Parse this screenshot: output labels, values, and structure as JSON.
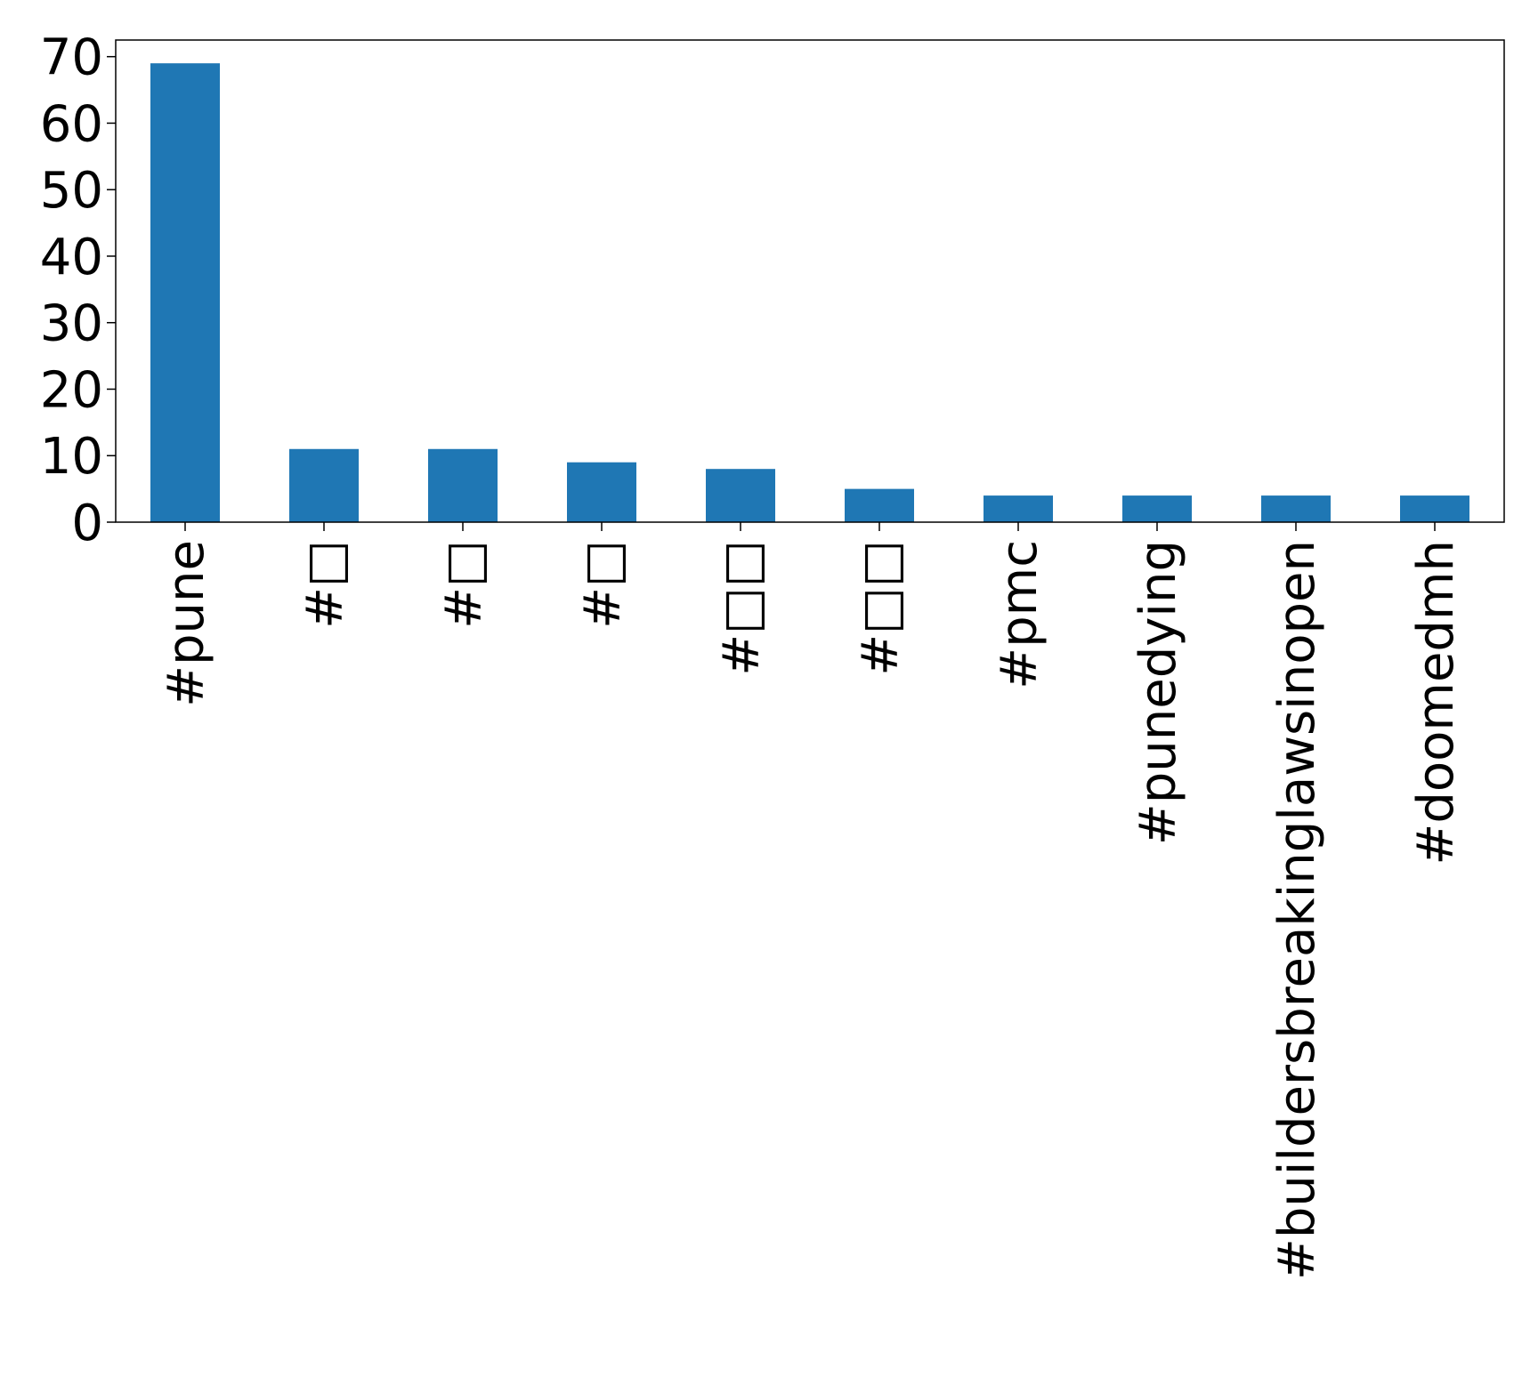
{
  "chart_data": {
    "type": "bar",
    "title": "",
    "xlabel": "",
    "ylabel": "",
    "categories": [
      "#pune",
      "#□",
      "#□",
      "#□",
      "#□□",
      "#□□",
      "#pmc",
      "#punedying",
      "#buildersbreakinglawsinopen",
      "#doomedmh"
    ],
    "values": [
      69,
      11,
      11,
      9,
      8,
      5,
      4,
      4,
      4,
      4
    ],
    "ylim": [
      0,
      72.5
    ],
    "yticks": [
      0,
      10,
      20,
      30,
      40,
      50,
      60,
      70
    ],
    "grid": false,
    "legend": "none",
    "colors": {
      "bar": "#1f77b4",
      "axis": "#000000"
    }
  }
}
